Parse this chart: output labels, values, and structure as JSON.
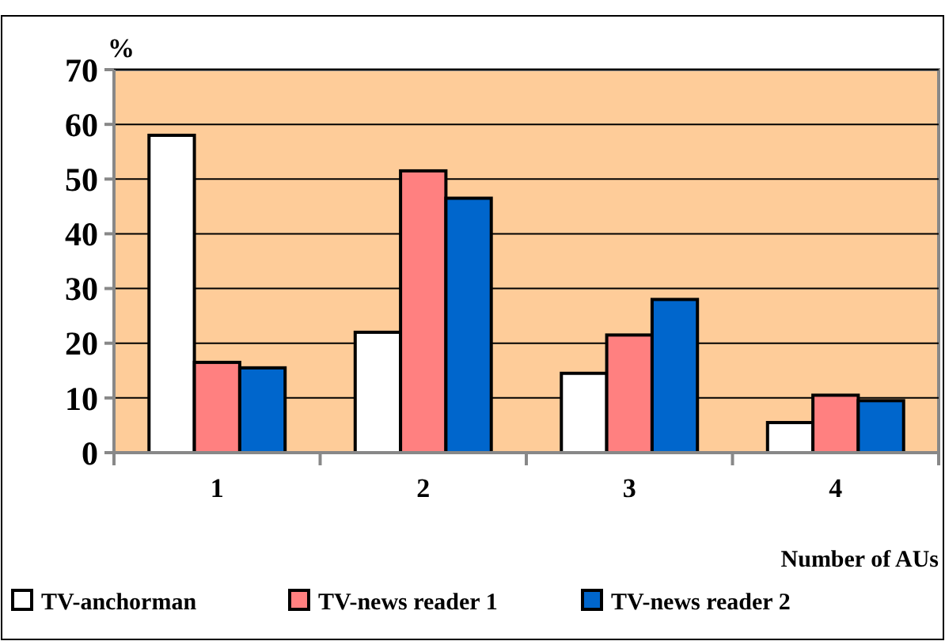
{
  "chart_data": {
    "type": "bar",
    "ylabel": "%",
    "xlabel": "Number of AUs",
    "categories": [
      "1",
      "2",
      "3",
      "4"
    ],
    "series": [
      {
        "name": "TV-anchorman",
        "color": "#ffffff",
        "values": [
          58,
          22,
          14.5,
          5.5
        ]
      },
      {
        "name": "TV-news reader 1",
        "color": "#ff8080",
        "values": [
          16.5,
          51.5,
          21.5,
          10.5
        ]
      },
      {
        "name": "TV-news reader 2",
        "color": "#0066cc",
        "values": [
          15.5,
          46.5,
          28,
          9.5
        ]
      }
    ],
    "ylim": [
      0,
      70
    ],
    "yticks": [
      0,
      10,
      20,
      30,
      40,
      50,
      60,
      70
    ],
    "grid": "y",
    "legend": "bottom"
  }
}
